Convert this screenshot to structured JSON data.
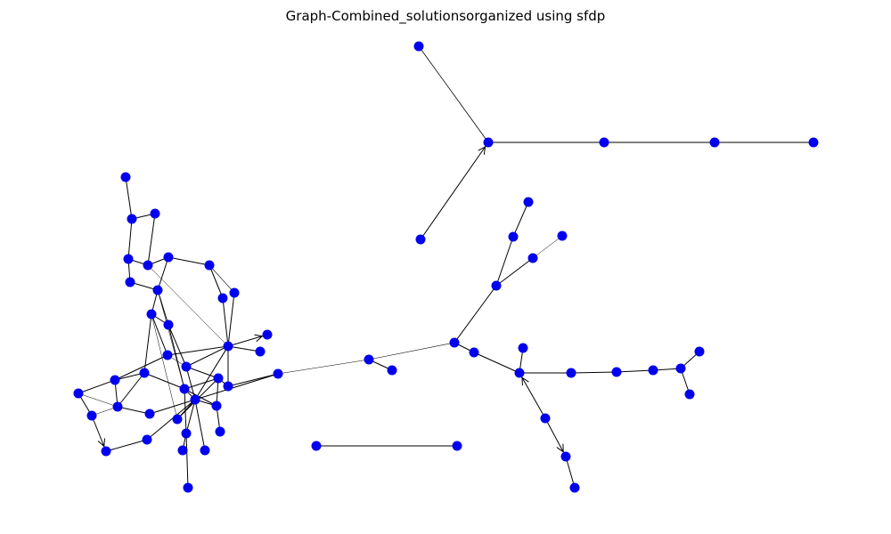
{
  "title": "Graph-Combined_solutionsorganized using sfdp",
  "colors": {
    "node": "#0000ee",
    "edge": "#000000",
    "background": "#ffffff"
  },
  "graph": {
    "type": "directed",
    "layout": "sfdp",
    "node_count": 87,
    "edge_count": 88
  }
}
